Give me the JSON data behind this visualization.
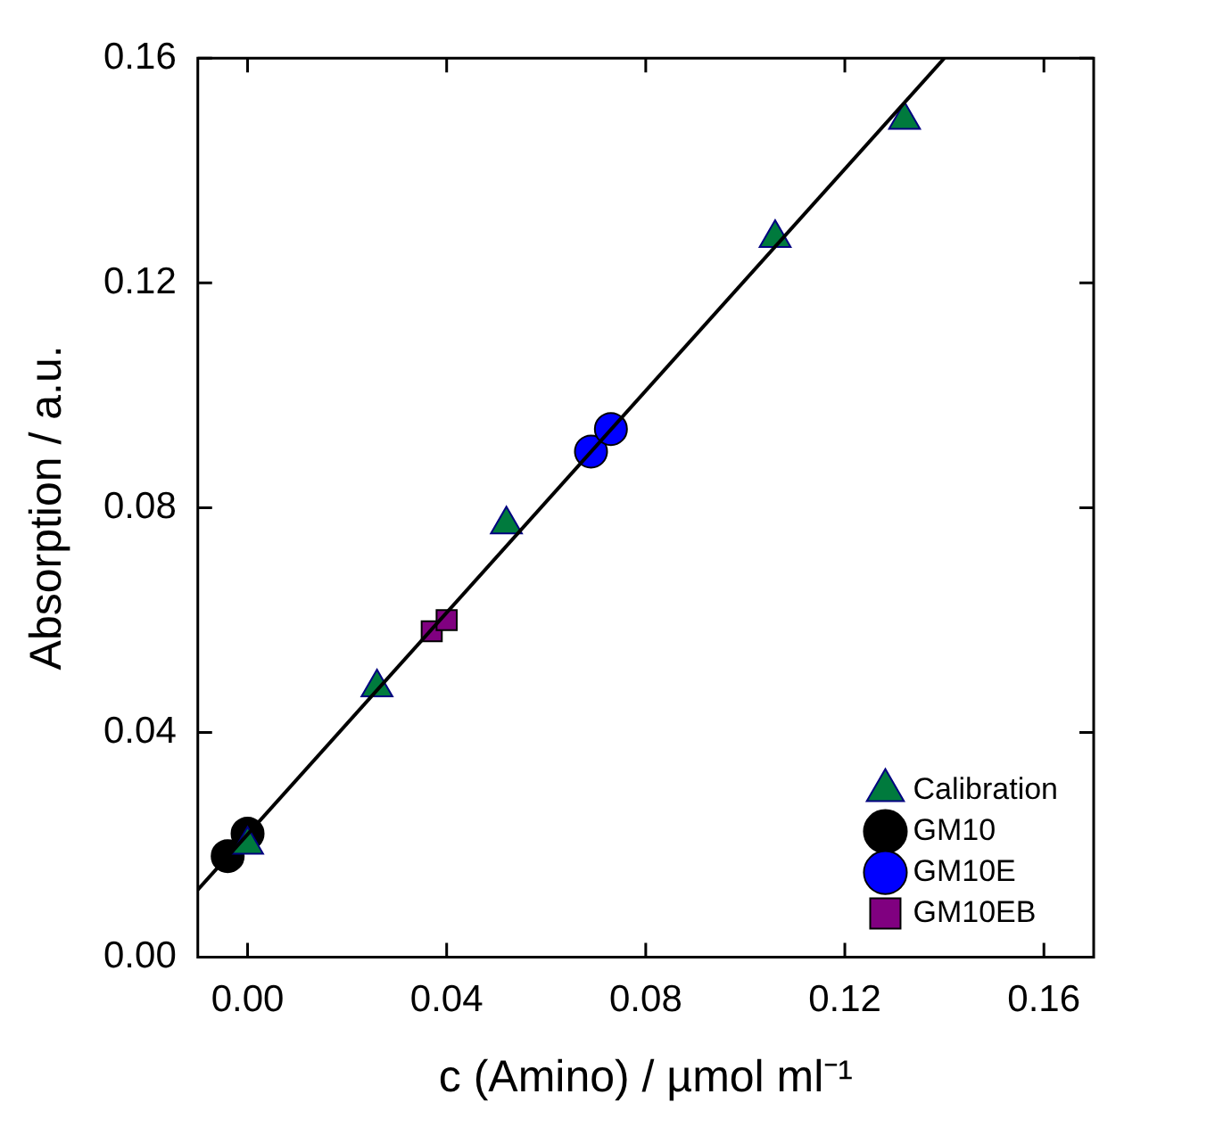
{
  "chart_data": {
    "type": "scatter",
    "xlabel": "c (Amino) / µmol ml⁻¹",
    "ylabel": "Absorption / a.u.",
    "xlim": [
      -0.01,
      0.17
    ],
    "ylim": [
      0,
      0.16
    ],
    "xticks": [
      {
        "value": 0,
        "label": "0.00"
      },
      {
        "value": 0.04,
        "label": "0.04"
      },
      {
        "value": 0.08,
        "label": "0.08"
      },
      {
        "value": 0.12,
        "label": "0.12"
      },
      {
        "value": 0.16,
        "label": "0.16"
      }
    ],
    "yticks": [
      {
        "value": 0,
        "label": "0.00"
      },
      {
        "value": 0.04,
        "label": "0.04"
      },
      {
        "value": 0.08,
        "label": "0.08"
      },
      {
        "value": 0.12,
        "label": "0.12"
      },
      {
        "value": 0.16,
        "label": "0.16"
      }
    ],
    "legend": "bottom right",
    "grid": false,
    "series": [
      {
        "type": "line",
        "x": [
          -0.01,
          0.14
        ],
        "values": [
          0.012,
          0.16
        ],
        "color": "#000000",
        "marker": "none",
        "line_style": "solid"
      },
      {
        "name": "Calibration",
        "marker": "triangle",
        "color": "#007a3d",
        "x": [
          0,
          0.026,
          0.052,
          0.106,
          0.132
        ],
        "values": [
          0.02,
          0.048,
          0.077,
          0.128,
          0.149
        ]
      },
      {
        "name": "GM10",
        "marker": "circle",
        "color": "#000000",
        "x": [
          -0.004,
          0
        ],
        "values": [
          0.018,
          0.022
        ]
      },
      {
        "name": "GM10E",
        "marker": "circle",
        "color": "#0000ff",
        "x": [
          0.069,
          0.073
        ],
        "values": [
          0.09,
          0.094
        ]
      },
      {
        "name": "GM10EB",
        "marker": "square",
        "color": "#800080",
        "x": [
          0.037,
          0.04
        ],
        "values": [
          0.058,
          0.06
        ]
      }
    ]
  }
}
